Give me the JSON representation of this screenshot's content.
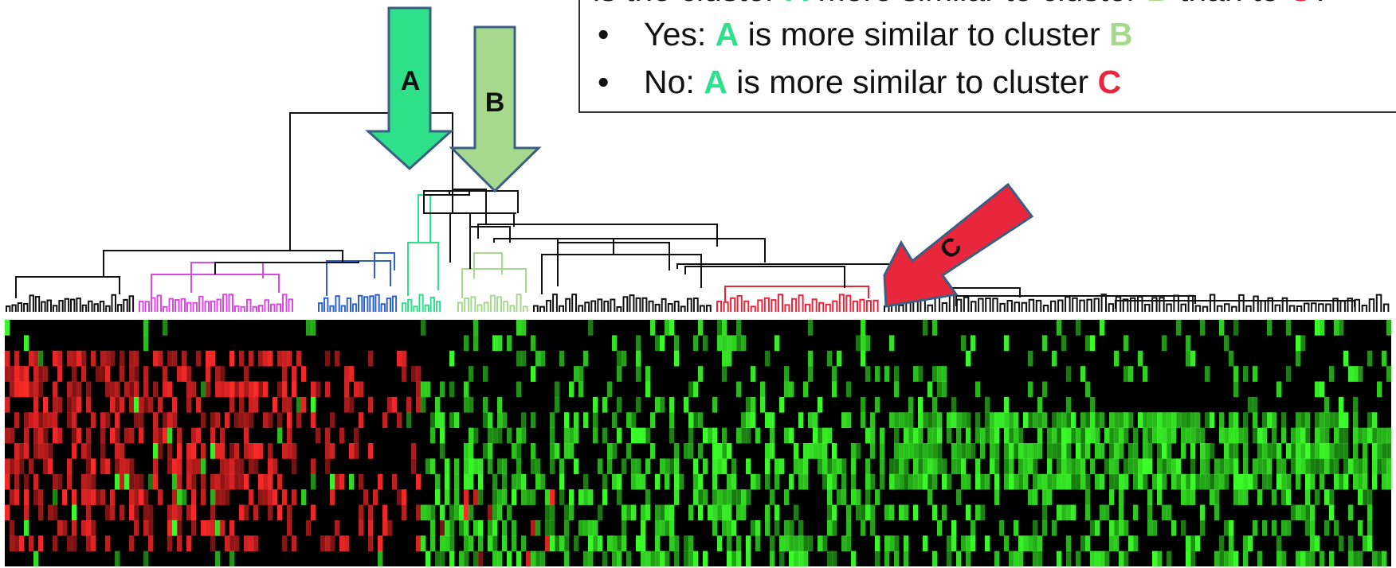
{
  "question": {
    "lead": "is the cluster ",
    "a": "A",
    "mid": " more similar to cluster ",
    "b": "B",
    "tail": " than to ",
    "c": "C",
    "end": "?"
  },
  "options": [
    {
      "label": "Yes: ",
      "letter": "A",
      "text": " is more similar to cluster ",
      "target": "B"
    },
    {
      "label": "No: ",
      "letter": "A",
      "text": " is more similar to cluster ",
      "target": "C"
    }
  ],
  "arrows": {
    "a_label": "A",
    "b_label": "B",
    "c_label": "C"
  },
  "colors": {
    "cluster_a": "#2ee08a",
    "cluster_b": "#a6d98e",
    "cluster_c": "#e8263c",
    "magenta_cluster": "#d94be0",
    "blue_cluster": "#2e62c9",
    "dendrogram": "#111111",
    "heatmap_background": "#000000",
    "heatmap_red": "#ff2a2a",
    "heatmap_green": "#3cff2a"
  },
  "icons": [
    "arrow-down-icon",
    "arrow-down-icon",
    "arrow-diagonal-icon",
    "bullet-icon"
  ]
}
